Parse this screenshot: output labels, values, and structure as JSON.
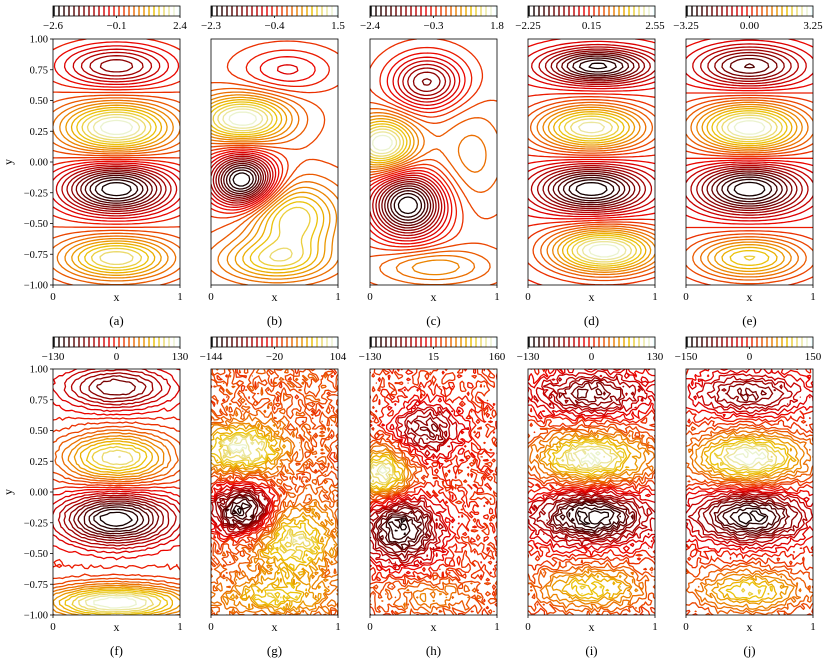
{
  "chart_data": [
    {
      "type": "contour",
      "panel_label": "(a)",
      "colorbar": {
        "ticks": [
          "−2.6",
          "−0.1",
          "2.4"
        ]
      },
      "xlabel": "x",
      "ylabel": "y",
      "xlim": [
        0,
        1
      ],
      "ylim": [
        -1,
        1
      ],
      "xticks": [
        "0",
        "1"
      ],
      "yticks": [
        "1.00",
        "0.75",
        "0.50",
        "0.25",
        "0.00",
        "−0.25",
        "−0.50",
        "−0.75",
        "−1.00"
      ],
      "field": {
        "noise": 0,
        "blobs": [
          {
            "x": 0.5,
            "y": 0.78,
            "sx": 0.3,
            "sy": 0.12,
            "a": -0.55
          },
          {
            "x": 0.5,
            "y": 0.28,
            "sx": 0.3,
            "sy": 0.14,
            "a": 0.85
          },
          {
            "x": 0.5,
            "y": -0.22,
            "sx": 0.3,
            "sy": 0.14,
            "a": -1.0
          },
          {
            "x": 0.5,
            "y": -0.78,
            "sx": 0.3,
            "sy": 0.12,
            "a": 0.7
          }
        ]
      }
    },
    {
      "type": "contour",
      "panel_label": "(b)",
      "colorbar": {
        "ticks": [
          "−2.3",
          "−0.4",
          "1.5"
        ]
      },
      "xlabel": "x",
      "xlim": [
        0,
        1
      ],
      "ylim": [
        -1,
        1
      ],
      "xticks": [
        "0",
        "1"
      ],
      "field": {
        "noise": 0,
        "blobs": [
          {
            "x": 0.25,
            "y": 0.35,
            "sx": 0.25,
            "sy": 0.13,
            "a": 0.75
          },
          {
            "x": 0.25,
            "y": -0.15,
            "sx": 0.18,
            "sy": 0.15,
            "a": -1.0
          },
          {
            "x": 0.65,
            "y": -0.45,
            "sx": 0.25,
            "sy": 0.2,
            "a": 0.55
          },
          {
            "x": 0.5,
            "y": -0.8,
            "sx": 0.3,
            "sy": 0.12,
            "a": 0.45
          },
          {
            "x": 0.6,
            "y": 0.75,
            "sx": 0.25,
            "sy": 0.12,
            "a": -0.25
          }
        ]
      }
    },
    {
      "type": "contour",
      "panel_label": "(c)",
      "colorbar": {
        "ticks": [
          "−2.4",
          "−0.3",
          "1.8"
        ]
      },
      "xlabel": "x",
      "xlim": [
        0,
        1
      ],
      "ylim": [
        -1,
        1
      ],
      "xticks": [
        "0",
        "1"
      ],
      "field": {
        "noise": 0,
        "blobs": [
          {
            "x": 0.45,
            "y": 0.65,
            "sx": 0.2,
            "sy": 0.15,
            "a": -0.6
          },
          {
            "x": 0.1,
            "y": 0.15,
            "sx": 0.18,
            "sy": 0.15,
            "a": 0.8
          },
          {
            "x": 0.3,
            "y": -0.35,
            "sx": 0.2,
            "sy": 0.18,
            "a": -1.0
          },
          {
            "x": 0.5,
            "y": -0.85,
            "sx": 0.3,
            "sy": 0.1,
            "a": 0.3
          },
          {
            "x": 0.8,
            "y": 0.05,
            "sx": 0.2,
            "sy": 0.3,
            "a": 0.2
          }
        ]
      }
    },
    {
      "type": "contour",
      "panel_label": "(d)",
      "colorbar": {
        "ticks": [
          "−2.25",
          "0.15",
          "2.55"
        ]
      },
      "xlabel": "x",
      "xlim": [
        0,
        1
      ],
      "ylim": [
        -1,
        1
      ],
      "xticks": [
        "0",
        "1"
      ],
      "field": {
        "noise": 0,
        "blobs": [
          {
            "x": 0.55,
            "y": 0.78,
            "sx": 0.3,
            "sy": 0.1,
            "a": -0.9
          },
          {
            "x": 0.5,
            "y": 0.28,
            "sx": 0.3,
            "sy": 0.13,
            "a": 0.9
          },
          {
            "x": 0.5,
            "y": -0.22,
            "sx": 0.3,
            "sy": 0.13,
            "a": -0.95
          },
          {
            "x": 0.6,
            "y": -0.72,
            "sx": 0.3,
            "sy": 0.13,
            "a": 1.0
          }
        ]
      }
    },
    {
      "type": "contour",
      "panel_label": "(e)",
      "colorbar": {
        "ticks": [
          "−3.25",
          "0.00",
          "3.25"
        ]
      },
      "xlabel": "x",
      "xlim": [
        0,
        1
      ],
      "ylim": [
        -1,
        1
      ],
      "xticks": [
        "0",
        "1"
      ],
      "field": {
        "noise": 0,
        "blobs": [
          {
            "x": 0.5,
            "y": 0.78,
            "sx": 0.3,
            "sy": 0.12,
            "a": -0.7
          },
          {
            "x": 0.5,
            "y": 0.28,
            "sx": 0.3,
            "sy": 0.14,
            "a": 1.0
          },
          {
            "x": 0.5,
            "y": -0.22,
            "sx": 0.3,
            "sy": 0.14,
            "a": -1.0
          },
          {
            "x": 0.5,
            "y": -0.78,
            "sx": 0.3,
            "sy": 0.12,
            "a": 0.7
          }
        ]
      }
    },
    {
      "type": "contour",
      "panel_label": "(f)",
      "colorbar": {
        "ticks": [
          "−130",
          "0",
          "130"
        ]
      },
      "xlabel": "x",
      "ylabel": "y",
      "xlim": [
        0,
        1
      ],
      "ylim": [
        -1,
        1
      ],
      "xticks": [
        "0",
        "1"
      ],
      "yticks": [
        "1.00",
        "0.75",
        "0.50",
        "0.25",
        "0.00",
        "−0.25",
        "−0.50",
        "−0.75",
        "−1.00"
      ],
      "field": {
        "noise": 0.02,
        "blobs": [
          {
            "x": 0.5,
            "y": 0.85,
            "sx": 0.3,
            "sy": 0.12,
            "a": -0.55
          },
          {
            "x": 0.5,
            "y": 0.28,
            "sx": 0.3,
            "sy": 0.14,
            "a": 0.75
          },
          {
            "x": 0.5,
            "y": -0.22,
            "sx": 0.3,
            "sy": 0.14,
            "a": -0.9
          },
          {
            "x": 0.5,
            "y": -0.9,
            "sx": 0.4,
            "sy": 0.1,
            "a": 0.9
          }
        ]
      }
    },
    {
      "type": "contour",
      "panel_label": "(g)",
      "colorbar": {
        "ticks": [
          "−144",
          "−20",
          "104"
        ]
      },
      "xlabel": "x",
      "xlim": [
        0,
        1
      ],
      "ylim": [
        -1,
        1
      ],
      "xticks": [
        "0",
        "1"
      ],
      "field": {
        "noise": 0.12,
        "blobs": [
          {
            "x": 0.25,
            "y": 0.35,
            "sx": 0.22,
            "sy": 0.13,
            "a": 0.7
          },
          {
            "x": 0.25,
            "y": -0.15,
            "sx": 0.17,
            "sy": 0.14,
            "a": -1.0
          },
          {
            "x": 0.65,
            "y": -0.4,
            "sx": 0.22,
            "sy": 0.2,
            "a": 0.55
          },
          {
            "x": 0.5,
            "y": -0.85,
            "sx": 0.3,
            "sy": 0.1,
            "a": 0.4
          }
        ]
      }
    },
    {
      "type": "contour",
      "panel_label": "(h)",
      "colorbar": {
        "ticks": [
          "−130",
          "15",
          "160"
        ]
      },
      "xlabel": "x",
      "xlim": [
        0,
        1
      ],
      "ylim": [
        -1,
        1
      ],
      "xticks": [
        "0",
        "1"
      ],
      "field": {
        "noise": 0.12,
        "blobs": [
          {
            "x": 0.45,
            "y": 0.5,
            "sx": 0.18,
            "sy": 0.15,
            "a": -0.6
          },
          {
            "x": 0.1,
            "y": 0.15,
            "sx": 0.15,
            "sy": 0.15,
            "a": 0.9
          },
          {
            "x": 0.25,
            "y": -0.3,
            "sx": 0.2,
            "sy": 0.18,
            "a": -1.0
          },
          {
            "x": 0.5,
            "y": -0.85,
            "sx": 0.3,
            "sy": 0.1,
            "a": 0.3
          }
        ]
      }
    },
    {
      "type": "contour",
      "panel_label": "(i)",
      "colorbar": {
        "ticks": [
          "−130",
          "0",
          "130"
        ]
      },
      "xlabel": "x",
      "xlim": [
        0,
        1
      ],
      "ylim": [
        -1,
        1
      ],
      "xticks": [
        "0",
        "1"
      ],
      "field": {
        "noise": 0.1,
        "blobs": [
          {
            "x": 0.5,
            "y": 0.8,
            "sx": 0.3,
            "sy": 0.12,
            "a": -0.6
          },
          {
            "x": 0.5,
            "y": 0.28,
            "sx": 0.3,
            "sy": 0.14,
            "a": 0.85
          },
          {
            "x": 0.5,
            "y": -0.2,
            "sx": 0.3,
            "sy": 0.14,
            "a": -0.95
          },
          {
            "x": 0.5,
            "y": -0.78,
            "sx": 0.3,
            "sy": 0.12,
            "a": 0.6
          }
        ]
      }
    },
    {
      "type": "contour",
      "panel_label": "(j)",
      "colorbar": {
        "ticks": [
          "−150",
          "0",
          "150"
        ]
      },
      "xlabel": "x",
      "xlim": [
        0,
        1
      ],
      "ylim": [
        -1,
        1
      ],
      "xticks": [
        "0",
        "1"
      ],
      "field": {
        "noise": 0.08,
        "blobs": [
          {
            "x": 0.5,
            "y": 0.8,
            "sx": 0.3,
            "sy": 0.12,
            "a": -0.6
          },
          {
            "x": 0.5,
            "y": 0.28,
            "sx": 0.3,
            "sy": 0.14,
            "a": 0.95
          },
          {
            "x": 0.5,
            "y": -0.2,
            "sx": 0.3,
            "sy": 0.14,
            "a": -1.0
          },
          {
            "x": 0.5,
            "y": -0.8,
            "sx": 0.3,
            "sy": 0.12,
            "a": 0.65
          }
        ]
      }
    }
  ],
  "colormap": {
    "name": "gist_heat_r",
    "low": "#000000",
    "mid": "#b22000",
    "high": "#ffffff"
  }
}
